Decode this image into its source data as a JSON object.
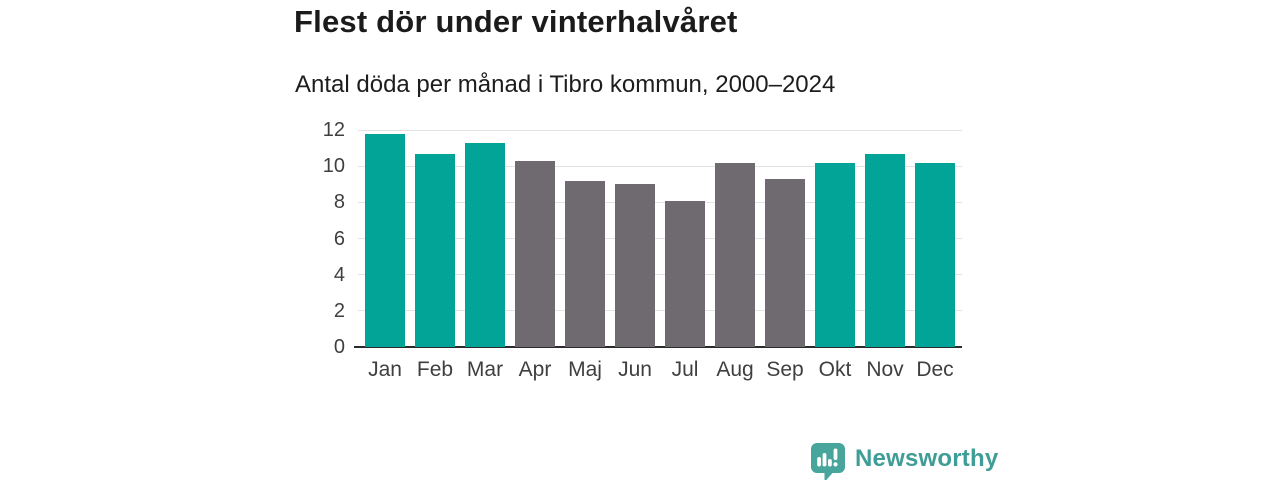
{
  "chart_data": {
    "type": "bar",
    "title": "Flest dör under vinterhalvåret",
    "subtitle": "Antal döda per månad i Tibro kommun, 2000–2024",
    "categories": [
      "Jan",
      "Feb",
      "Mar",
      "Apr",
      "Maj",
      "Jun",
      "Jul",
      "Aug",
      "Sep",
      "Okt",
      "Nov",
      "Dec"
    ],
    "values": [
      11.8,
      10.7,
      11.3,
      10.3,
      9.2,
      9.0,
      8.1,
      10.2,
      9.3,
      10.2,
      10.7,
      10.2
    ],
    "bar_groups": [
      "winter",
      "winter",
      "winter",
      "summer",
      "summer",
      "summer",
      "summer",
      "summer",
      "summer",
      "winter",
      "winter",
      "winter"
    ],
    "palette": {
      "winter": "#01A497",
      "summer": "#6E6A70"
    },
    "xlabel": "",
    "ylabel": "",
    "ylim": [
      0,
      12
    ],
    "yticks": [
      0,
      2,
      4,
      6,
      8,
      10,
      12
    ],
    "grid": "horizontal",
    "legend": "none"
  },
  "branding": {
    "name": "Newsworthy",
    "logo_icon": "speech-bubble-bar-chart-exclamation",
    "text_color": "#3E9D96",
    "icon_color": "#47A59B"
  }
}
